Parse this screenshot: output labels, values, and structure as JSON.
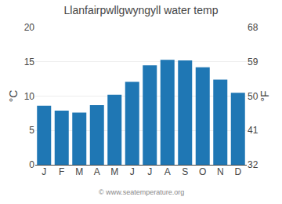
{
  "chart_data": {
    "type": "bar",
    "title": "Llanfairpwllgwyngyll water temp",
    "categories": [
      "J",
      "F",
      "M",
      "A",
      "M",
      "J",
      "J",
      "A",
      "S",
      "O",
      "N",
      "D"
    ],
    "values": [
      8.6,
      7.9,
      7.6,
      8.7,
      10.2,
      12.1,
      14.5,
      15.3,
      15.2,
      14.2,
      12.4,
      10.5
    ],
    "ylabel": "°C",
    "y2label": "°F",
    "ylim": [
      0,
      20
    ],
    "yticks": [
      0,
      5,
      10,
      15,
      20
    ],
    "y2lim": [
      32,
      68
    ],
    "y2ticks": [
      32,
      41,
      50,
      59,
      68
    ],
    "grid": true,
    "annotations": [
      "© www.seatemperature.org"
    ]
  }
}
